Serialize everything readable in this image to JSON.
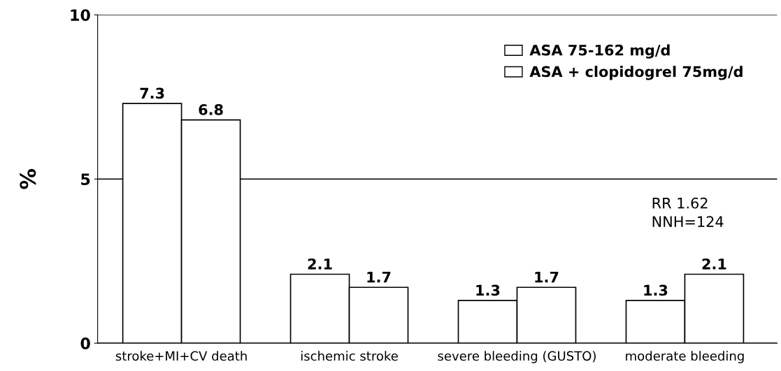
{
  "chart_data": {
    "type": "bar",
    "ylabel": "%",
    "categories": [
      "stroke+MI+CV death",
      "ischemic stroke",
      "severe bleeding (GUSTO)",
      "moderate bleeding"
    ],
    "series": [
      {
        "name": "ASA 75-162 mg/d",
        "color": "#ffffff",
        "values": [
          7.3,
          2.1,
          1.3,
          1.3
        ]
      },
      {
        "name": "ASA + clopidogrel 75mg/d",
        "color": "#ffffff",
        "values": [
          6.8,
          1.7,
          1.7,
          2.1
        ]
      }
    ],
    "ylim": [
      0,
      10
    ],
    "yticks": [
      0,
      5,
      10
    ],
    "grid": "y",
    "legend": "top right",
    "data_labels": true,
    "annotations": [
      "RR 1.62\nNNH=124"
    ]
  }
}
